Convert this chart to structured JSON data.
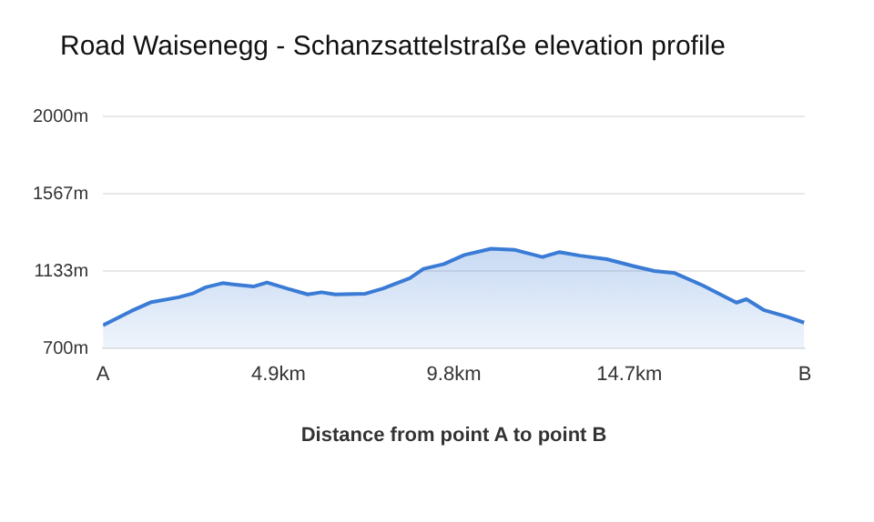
{
  "chart_data": {
    "type": "area",
    "title": "Road Waisenegg - Schanzsattelstraße elevation profile",
    "xlabel": "Distance from point A to point B",
    "x": [
      0,
      0.78,
      1.35,
      2.11,
      2.49,
      2.87,
      3.34,
      3.82,
      4.2,
      4.58,
      5.15,
      5.72,
      6.1,
      6.48,
      7.33,
      7.81,
      8.57,
      8.95,
      9.52,
      10.09,
      10.84,
      11.51,
      12.27,
      12.75,
      13.32,
      14.07,
      14.83,
      15.4,
      15.97,
      16.73,
      17.69,
      17.97,
      18.45,
      19.11,
      19.58
    ],
    "series": [
      {
        "color": "#3a7bd5",
        "values": [
          830,
          909,
          960,
          987,
          1007,
          1043,
          1066,
          1055,
          1047,
          1070,
          1035,
          1003,
          1015,
          1003,
          1007,
          1035,
          1094,
          1146,
          1173,
          1224,
          1259,
          1252,
          1212,
          1240,
          1220,
          1200,
          1161,
          1134,
          1122,
          1055,
          957,
          976,
          916,
          877,
          845
        ]
      }
    ],
    "xlim": [
      0,
      19.6
    ],
    "xticks": [
      {
        "value": 0,
        "label": "A"
      },
      {
        "value": 4.9,
        "label": "4.9km"
      },
      {
        "value": 9.8,
        "label": "9.8km"
      },
      {
        "value": 14.7,
        "label": "14.7km"
      },
      {
        "value": 19.6,
        "label": "B"
      }
    ],
    "ylim": [
      700,
      2000
    ],
    "yticks": [
      {
        "value": 700,
        "label": "700m"
      },
      {
        "value": 1133,
        "label": "1133m"
      },
      {
        "value": 1567,
        "label": "1567m"
      },
      {
        "value": 2000,
        "label": "2000m"
      }
    ],
    "grid": "y",
    "legend": false,
    "marker": "none"
  }
}
